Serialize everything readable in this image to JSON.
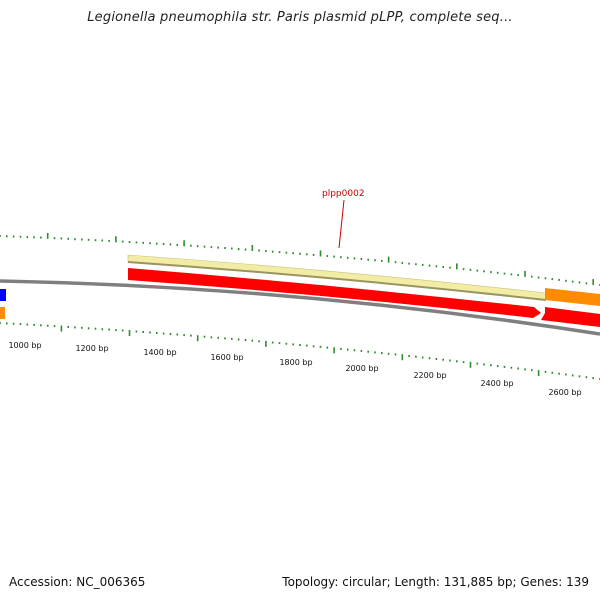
{
  "title": "Legionella pneumophila str. Paris plasmid pLPP, complete seq...",
  "map": {
    "gene_label": "plpp0002",
    "scale_labels": [
      "1000 bp",
      "1200 bp",
      "1400 bp",
      "1600 bp",
      "1800 bp",
      "2000 bp",
      "2200 bp",
      "2400 bp",
      "2600 bp"
    ],
    "colors": {
      "backbone": "#7f7f7f",
      "gene_forward": "#ff0000",
      "gene_highlight": "#f3eca4",
      "feature_orange": "#ff8c00",
      "feature_blue": "#0000ff",
      "ticks": "#2e8b2e",
      "label": "#cc0000"
    }
  },
  "footer": {
    "accession": "Accession: NC_006365",
    "summary": "Topology: circular; Length: 131,885 bp; Genes: 139"
  }
}
